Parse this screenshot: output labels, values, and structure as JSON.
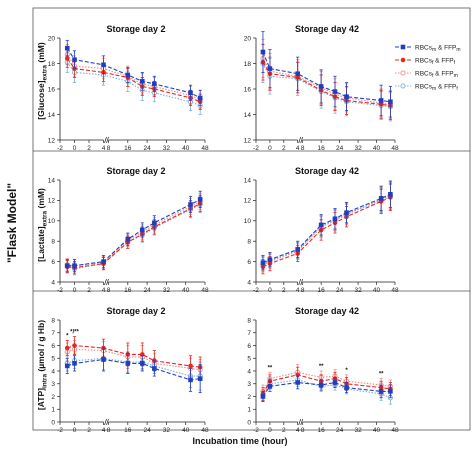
{
  "figure_label": "\"Flask Model\"",
  "xlabel": "Incubation time (hour)",
  "legend": [
    {
      "label": "RBCs_m & FFP_m",
      "color": "#1f3fbf",
      "marker": "square-filled",
      "dash": "4,2"
    },
    {
      "label": "RBCs_f & FFP_f",
      "color": "#e8271f",
      "marker": "circle-filled",
      "dash": "4,2"
    },
    {
      "label": "RBCs_f & FFP_m",
      "color": "#f08a8a",
      "marker": "circle-open",
      "dash": "1.5,1.5"
    },
    {
      "label": "RBCs_m & FFP_f",
      "color": "#7aaee0",
      "marker": "circle-open",
      "dash": "1.5,1.5"
    }
  ],
  "x_ticks": [
    -2,
    0,
    2,
    4,
    8,
    16,
    24,
    32,
    40,
    48
  ],
  "rows": [
    {
      "ylabel": "[Glucose]extra (mM)",
      "ymin": 12,
      "ymax": 20,
      "yticks": [
        12,
        14,
        16,
        18,
        20
      ]
    },
    {
      "ylabel": "[Lactate]extra (mM)",
      "ymin": 4,
      "ymax": 14,
      "yticks": [
        4,
        6,
        8,
        10,
        12,
        14
      ]
    },
    {
      "ylabel": "[ATP]intra (µmol / g Hb)",
      "ymin": 0,
      "ymax": 8,
      "yticks": [
        0,
        1,
        2,
        3,
        4,
        5,
        6,
        7,
        8
      ]
    }
  ],
  "chart_data": [
    {
      "type": "line",
      "title": "Storage day 2",
      "ylabel": "[Glucose]extra (mM)",
      "ylim": [
        12,
        20
      ],
      "x": [
        -1,
        0,
        4,
        16,
        22,
        27,
        42,
        46
      ],
      "series": [
        {
          "name": "RBCs_m & FFP_m",
          "values": [
            19.2,
            18.3,
            17.9,
            17.1,
            16.6,
            16.4,
            15.7,
            15.3
          ],
          "errors": [
            0.6,
            0.7,
            0.7,
            0.6,
            0.7,
            0.6,
            0.6,
            0.6
          ]
        },
        {
          "name": "RBCs_f & FFP_f",
          "values": [
            18.4,
            17.6,
            17.3,
            16.9,
            16.2,
            16.0,
            15.3,
            15.0
          ],
          "errors": [
            0.7,
            0.7,
            0.7,
            0.7,
            0.7,
            0.6,
            0.6,
            0.6
          ]
        },
        {
          "name": "RBCs_f & FFP_m",
          "values": [
            18.7,
            17.8,
            17.6,
            17.0,
            16.4,
            16.2,
            15.5,
            15.2
          ],
          "errors": [
            0.8,
            0.8,
            0.8,
            0.8,
            0.8,
            0.7,
            0.7,
            0.7
          ]
        },
        {
          "name": "RBCs_m & FFP_f",
          "values": [
            18.1,
            17.3,
            17.1,
            16.6,
            15.9,
            15.7,
            15.0,
            14.7
          ],
          "errors": [
            0.8,
            0.8,
            0.8,
            0.8,
            0.8,
            0.7,
            0.7,
            0.7
          ]
        }
      ]
    },
    {
      "type": "line",
      "title": "Storage day 42",
      "ylabel": "[Glucose]extra (mM)",
      "ylim": [
        12,
        20
      ],
      "x": [
        -1,
        0,
        4,
        16,
        22,
        27,
        42,
        46
      ],
      "series": [
        {
          "name": "RBCs_m & FFP_m",
          "values": [
            18.9,
            17.6,
            17.2,
            16.2,
            15.8,
            15.4,
            15.1,
            15.0
          ],
          "errors": [
            1.6,
            1.5,
            1.3,
            1.3,
            1.2,
            1.1,
            1.2,
            1.2
          ]
        },
        {
          "name": "RBCs_f & FFP_f",
          "values": [
            18.1,
            17.2,
            16.9,
            15.9,
            15.4,
            15.1,
            14.8,
            14.7
          ],
          "errors": [
            1.4,
            1.3,
            1.2,
            1.2,
            1.1,
            1.1,
            1.1,
            1.1
          ]
        },
        {
          "name": "RBCs_f & FFP_m",
          "values": [
            18.4,
            17.4,
            17.0,
            16.1,
            15.6,
            15.3,
            14.9,
            14.8
          ],
          "errors": [
            1.5,
            1.4,
            1.3,
            1.3,
            1.2,
            1.1,
            1.1,
            1.1
          ]
        },
        {
          "name": "RBCs_m & FFP_f",
          "values": [
            18.0,
            17.0,
            16.8,
            15.8,
            15.3,
            15.0,
            14.7,
            14.6
          ],
          "errors": [
            1.5,
            1.4,
            1.3,
            1.3,
            1.2,
            1.1,
            1.1,
            1.1
          ]
        }
      ]
    },
    {
      "type": "line",
      "title": "Storage day 2",
      "ylabel": "[Lactate]extra (mM)",
      "ylim": [
        4,
        14
      ],
      "x": [
        -1,
        0,
        4,
        16,
        22,
        27,
        42,
        46
      ],
      "series": [
        {
          "name": "RBCs_m & FFP_m",
          "values": [
            5.6,
            5.6,
            6.0,
            8.2,
            9.1,
            9.8,
            11.6,
            12.1
          ],
          "errors": [
            0.6,
            0.6,
            0.6,
            0.6,
            0.7,
            0.7,
            0.8,
            0.8
          ]
        },
        {
          "name": "RBCs_f & FFP_f",
          "values": [
            5.5,
            5.4,
            5.8,
            7.9,
            8.7,
            9.4,
            11.2,
            11.7
          ],
          "errors": [
            0.6,
            0.6,
            0.6,
            0.6,
            0.7,
            0.7,
            0.8,
            0.8
          ]
        },
        {
          "name": "RBCs_f & FFP_m",
          "values": [
            5.7,
            5.6,
            5.9,
            8.1,
            8.9,
            9.6,
            11.4,
            11.9
          ],
          "errors": [
            0.6,
            0.6,
            0.6,
            0.6,
            0.7,
            0.7,
            0.8,
            0.8
          ]
        },
        {
          "name": "RBCs_m & FFP_f",
          "values": [
            5.5,
            5.3,
            5.8,
            7.9,
            8.6,
            9.3,
            11.1,
            11.6
          ],
          "errors": [
            0.6,
            0.6,
            0.6,
            0.6,
            0.7,
            0.7,
            0.8,
            0.8
          ]
        }
      ]
    },
    {
      "type": "line",
      "title": "Storage day 42",
      "ylabel": "[Lactate]extra (mM)",
      "ylim": [
        4,
        14
      ],
      "x": [
        -1,
        0,
        4,
        16,
        22,
        27,
        42,
        46
      ],
      "series": [
        {
          "name": "RBCs_m & FFP_m",
          "values": [
            5.9,
            6.2,
            7.2,
            9.6,
            10.2,
            10.8,
            12.2,
            12.6
          ],
          "errors": [
            0.7,
            0.7,
            0.8,
            1.0,
            1.0,
            1.0,
            1.2,
            1.3
          ]
        },
        {
          "name": "RBCs_f & FFP_f",
          "values": [
            5.5,
            5.8,
            6.8,
            9.1,
            9.8,
            10.4,
            11.9,
            12.3
          ],
          "errors": [
            0.7,
            0.7,
            0.8,
            1.0,
            1.0,
            1.0,
            1.2,
            1.3
          ]
        },
        {
          "name": "RBCs_f & FFP_m",
          "values": [
            5.7,
            6.0,
            7.0,
            9.4,
            10.0,
            10.6,
            12.1,
            12.5
          ],
          "errors": [
            0.7,
            0.7,
            0.8,
            1.0,
            1.0,
            1.0,
            1.2,
            1.3
          ]
        },
        {
          "name": "RBCs_m & FFP_f",
          "values": [
            5.8,
            6.1,
            7.1,
            9.5,
            10.1,
            10.7,
            12.0,
            12.4
          ],
          "errors": [
            0.7,
            0.7,
            0.8,
            1.0,
            1.0,
            1.0,
            1.2,
            1.3
          ]
        }
      ]
    },
    {
      "type": "line",
      "title": "Storage day 2",
      "ylabel": "[ATP]intra (µmol / g Hb)",
      "ylim": [
        0,
        8
      ],
      "x": [
        -1,
        0,
        4,
        16,
        22,
        27,
        42,
        46
      ],
      "significance": [
        {
          "x": -1,
          "text": "*"
        },
        {
          "x": 0,
          "text": "*/**"
        }
      ],
      "series": [
        {
          "name": "RBCs_m & FFP_m",
          "values": [
            4.4,
            4.6,
            4.9,
            4.6,
            4.6,
            4.2,
            3.3,
            3.4
          ],
          "errors": [
            0.6,
            0.6,
            0.9,
            0.8,
            0.6,
            0.6,
            0.9,
            1.1
          ]
        },
        {
          "name": "RBCs_f & FFP_f",
          "values": [
            5.8,
            6.0,
            5.8,
            5.3,
            5.3,
            4.8,
            4.4,
            4.3
          ],
          "errors": [
            0.6,
            0.7,
            0.7,
            0.9,
            0.9,
            0.8,
            0.8,
            0.8
          ]
        },
        {
          "name": "RBCs_f & FFP_m",
          "values": [
            5.5,
            5.7,
            5.6,
            5.1,
            5.1,
            4.6,
            4.2,
            4.1
          ],
          "errors": [
            0.7,
            0.7,
            0.7,
            0.9,
            0.9,
            0.8,
            0.8,
            0.8
          ]
        },
        {
          "name": "RBCs_m & FFP_f",
          "values": [
            4.6,
            4.8,
            5.0,
            4.7,
            4.7,
            4.4,
            3.6,
            3.6
          ],
          "errors": [
            0.6,
            0.6,
            0.9,
            0.8,
            0.6,
            0.6,
            0.9,
            1.1
          ]
        }
      ]
    },
    {
      "type": "line",
      "title": "Storage day 42",
      "ylabel": "[ATP]intra (µmol / g Hb)",
      "ylim": [
        0,
        8
      ],
      "x": [
        -1,
        0,
        4,
        16,
        22,
        27,
        42,
        46
      ],
      "significance": [
        {
          "x": 0,
          "text": "**"
        },
        {
          "x": 16,
          "text": "**"
        },
        {
          "x": 27,
          "text": "*"
        },
        {
          "x": 42,
          "text": "**"
        }
      ],
      "series": [
        {
          "name": "RBCs_m & FFP_m",
          "values": [
            2.0,
            2.8,
            3.1,
            2.9,
            3.1,
            2.7,
            2.4,
            2.4
          ],
          "errors": [
            0.4,
            0.4,
            0.5,
            0.4,
            0.4,
            0.4,
            0.5,
            0.5
          ]
        },
        {
          "name": "RBCs_f & FFP_f",
          "values": [
            2.2,
            3.2,
            3.7,
            3.2,
            3.4,
            3.0,
            2.7,
            2.6
          ],
          "errors": [
            0.5,
            0.5,
            0.6,
            0.5,
            0.5,
            0.5,
            0.5,
            0.5
          ]
        },
        {
          "name": "RBCs_f & FFP_m",
          "values": [
            2.4,
            3.4,
            3.9,
            3.5,
            3.6,
            3.2,
            2.9,
            2.8
          ],
          "errors": [
            0.5,
            0.5,
            0.6,
            0.5,
            0.5,
            0.5,
            0.5,
            0.5
          ]
        },
        {
          "name": "RBCs_m & FFP_f",
          "values": [
            2.1,
            3.0,
            3.3,
            2.8,
            2.9,
            2.6,
            2.2,
            1.9
          ],
          "errors": [
            0.4,
            0.4,
            0.5,
            0.4,
            0.4,
            0.4,
            0.5,
            0.5
          ]
        }
      ]
    }
  ]
}
